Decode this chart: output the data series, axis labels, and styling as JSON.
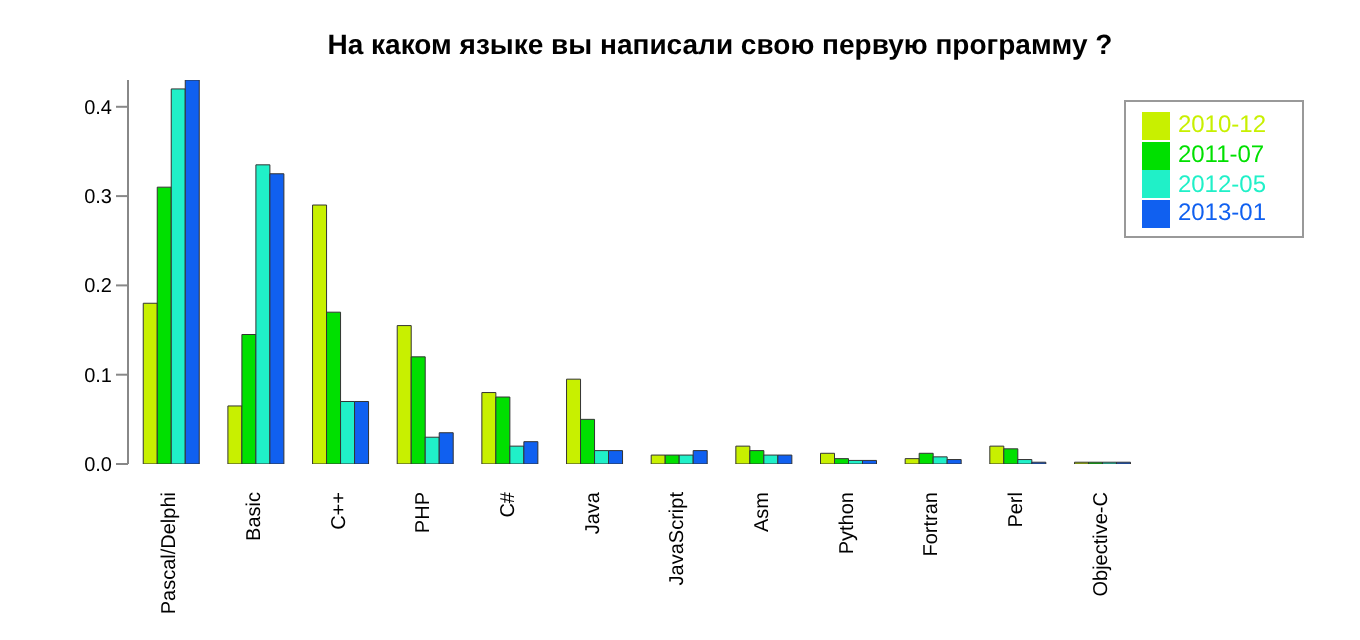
{
  "chart_data": {
    "type": "bar",
    "title": "На каком языке вы написали свою первую программу ?",
    "categories": [
      "Pascal/Delphi",
      "Basic",
      "C++",
      "PHP",
      "C#",
      "Java",
      "JavaScript",
      "Asm",
      "Python",
      "Fortran",
      "Perl",
      "Objective-C"
    ],
    "series": [
      {
        "name": "2010-12",
        "color": "#c8f000",
        "values": [
          0.18,
          0.065,
          0.29,
          0.155,
          0.08,
          0.095,
          0.01,
          0.02,
          0.012,
          0.006,
          0.02,
          0.002
        ]
      },
      {
        "name": "2011-07",
        "color": "#00e000",
        "values": [
          0.31,
          0.145,
          0.17,
          0.12,
          0.075,
          0.05,
          0.01,
          0.015,
          0.006,
          0.012,
          0.017,
          0.002
        ]
      },
      {
        "name": "2012-05",
        "color": "#20f0c8",
        "values": [
          0.42,
          0.335,
          0.07,
          0.03,
          0.02,
          0.015,
          0.01,
          0.01,
          0.004,
          0.008,
          0.005,
          0.002
        ]
      },
      {
        "name": "2013-01",
        "color": "#1060f0",
        "values": [
          0.43,
          0.325,
          0.07,
          0.035,
          0.025,
          0.015,
          0.015,
          0.01,
          0.004,
          0.005,
          0.002,
          0.002
        ]
      }
    ],
    "ylim": [
      0,
      0.43
    ],
    "yticks": [
      {
        "value": 0,
        "label": "0.0"
      },
      0.1,
      0.2,
      0.3,
      0.4
    ],
    "grid": false,
    "legend": "top right"
  }
}
